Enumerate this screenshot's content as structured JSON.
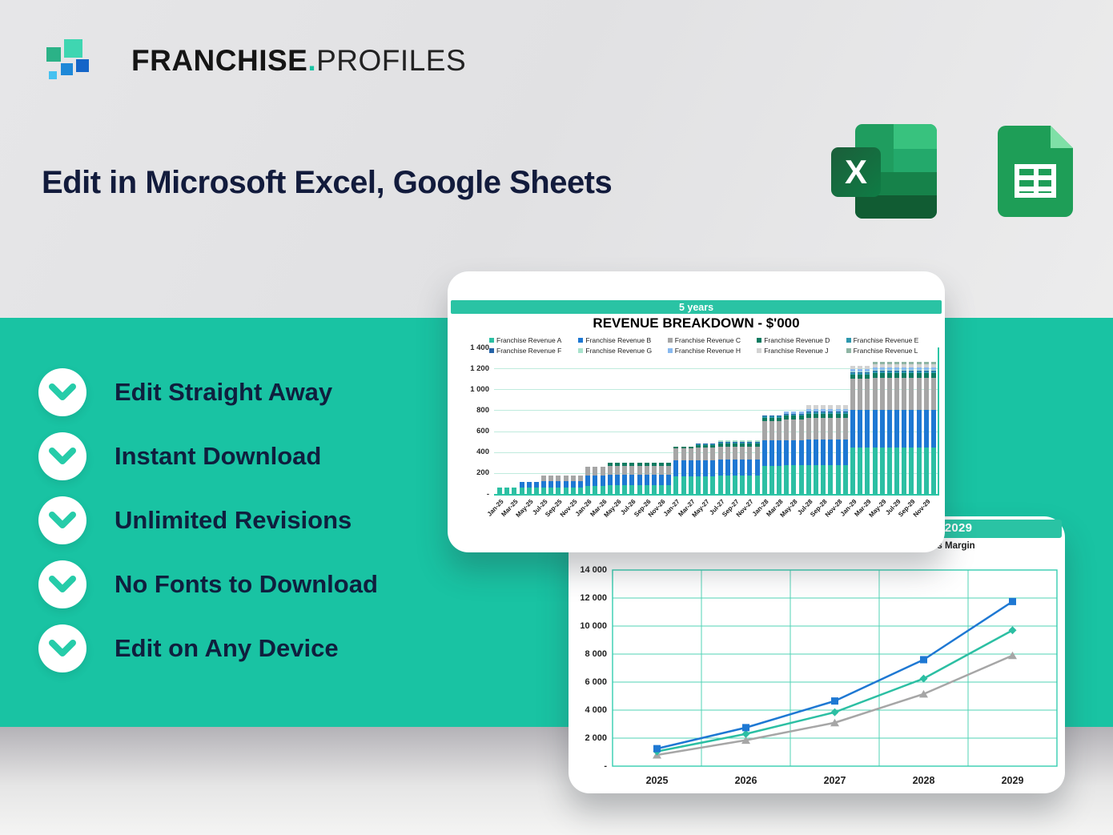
{
  "logo": {
    "word1": "FRANCHISE",
    "dot": ".",
    "word2": "PROFILES"
  },
  "headline": "Edit in Microsoft Excel, Google Sheets",
  "icons": {
    "logo_icon": "squares-cluster-logo-icon",
    "excel": "microsoft-excel-icon",
    "sheets": "google-sheets-icon",
    "feature_bullet": "chevron-down-icon"
  },
  "features": [
    {
      "label": "Edit Straight Away"
    },
    {
      "label": "Instant Download"
    },
    {
      "label": "Unlimited Revisions"
    },
    {
      "label": "No Fonts to Download"
    },
    {
      "label": "Edit on Any Device"
    }
  ],
  "colors": {
    "teal_band": "#19C3A3",
    "navy_text": "#0F1F3E",
    "card_header_teal": "#2AC3A4",
    "grid_teal_light": "#BFEBDD",
    "grid_teal": "#52D3B6",
    "axis_teal": "#2CC5A5"
  },
  "chart_data": [
    {
      "type": "bar",
      "stacked": true,
      "period_label": "5 years",
      "title": "REVENUE BREAKDOWN - $'000",
      "n_points": 60,
      "ylim": [
        0,
        1400
      ],
      "y_tick_values": [
        1400,
        1200,
        1000,
        800,
        600,
        400,
        200,
        0
      ],
      "y_tick_labels": [
        "1 400",
        "1 200",
        "1 000",
        "800",
        "600",
        "400",
        "200",
        "-"
      ],
      "x_tick_labels": [
        "Jan-25",
        "Mar-25",
        "May-25",
        "Jul-25",
        "Sep-25",
        "Nov-25",
        "Jan-26",
        "Mar-26",
        "May-26",
        "Jul-26",
        "Sep-26",
        "Nov-26",
        "Jan-27",
        "Mar-27",
        "May-27",
        "Jul-27",
        "Sep-27",
        "Nov-27",
        "Jan-28",
        "Mar-28",
        "May-28",
        "Jul-28",
        "Sep-28",
        "Nov-28",
        "Jan-29",
        "Mar-29",
        "May-29",
        "Jul-29",
        "Sep-29",
        "Nov-29"
      ],
      "legend_position": "top",
      "series": [
        {
          "name": "Franchise Revenue A",
          "color": "#2CBFA3",
          "values": [
            60,
            60,
            60,
            62,
            62,
            62,
            64,
            64,
            64,
            64,
            64,
            64,
            80,
            80,
            80,
            82,
            82,
            82,
            82,
            82,
            82,
            82,
            82,
            82,
            170,
            170,
            170,
            172,
            172,
            172,
            175,
            175,
            175,
            175,
            175,
            175,
            270,
            270,
            270,
            272,
            272,
            272,
            275,
            275,
            275,
            275,
            275,
            275,
            440,
            440,
            440,
            445,
            445,
            445,
            445,
            445,
            445,
            445,
            445,
            445
          ]
        },
        {
          "name": "Franchise Revenue B",
          "color": "#1E78D3",
          "values": [
            0,
            0,
            0,
            55,
            55,
            55,
            56,
            56,
            56,
            56,
            56,
            56,
            95,
            95,
            95,
            98,
            98,
            98,
            98,
            98,
            98,
            98,
            98,
            98,
            150,
            150,
            150,
            153,
            153,
            153,
            155,
            155,
            155,
            155,
            155,
            155,
            240,
            240,
            240,
            242,
            242,
            242,
            245,
            245,
            245,
            245,
            245,
            245,
            360,
            360,
            360,
            362,
            362,
            362,
            362,
            362,
            362,
            362,
            362,
            362
          ]
        },
        {
          "name": "Franchise Revenue C",
          "color": "#A6A6A6",
          "values": [
            0,
            0,
            0,
            0,
            0,
            0,
            55,
            55,
            55,
            55,
            55,
            55,
            85,
            85,
            85,
            90,
            90,
            90,
            90,
            90,
            90,
            90,
            90,
            90,
            115,
            115,
            115,
            120,
            120,
            120,
            125,
            125,
            125,
            125,
            125,
            125,
            185,
            185,
            185,
            195,
            195,
            195,
            205,
            205,
            205,
            205,
            205,
            205,
            300,
            300,
            300,
            305,
            305,
            305,
            305,
            305,
            305,
            305,
            305,
            305
          ]
        },
        {
          "name": "Franchise Revenue D",
          "color": "#0E7B60",
          "values": [
            0,
            0,
            0,
            0,
            0,
            0,
            0,
            0,
            0,
            0,
            0,
            0,
            0,
            0,
            0,
            30,
            30,
            30,
            30,
            30,
            30,
            30,
            30,
            30,
            20,
            20,
            20,
            22,
            22,
            22,
            25,
            25,
            25,
            25,
            25,
            25,
            35,
            35,
            35,
            38,
            38,
            38,
            40,
            40,
            40,
            40,
            40,
            40,
            40,
            40,
            40,
            42,
            42,
            42,
            42,
            42,
            42,
            42,
            42,
            42
          ]
        },
        {
          "name": "Franchise Revenue E",
          "color": "#2E98AE",
          "values": [
            0,
            0,
            0,
            0,
            0,
            0,
            0,
            0,
            0,
            0,
            0,
            0,
            0,
            0,
            0,
            0,
            0,
            0,
            0,
            0,
            0,
            0,
            0,
            0,
            0,
            0,
            0,
            11,
            11,
            11,
            12,
            12,
            12,
            12,
            12,
            12,
            10,
            10,
            10,
            12,
            12,
            12,
            14,
            14,
            14,
            14,
            14,
            14,
            15,
            15,
            15,
            16,
            16,
            16,
            16,
            16,
            16,
            16,
            16,
            16
          ]
        },
        {
          "name": "Franchise Revenue F",
          "color": "#2563A8",
          "values": [
            0,
            0,
            0,
            0,
            0,
            0,
            0,
            0,
            0,
            0,
            0,
            0,
            0,
            0,
            0,
            0,
            0,
            0,
            0,
            0,
            0,
            0,
            0,
            0,
            0,
            0,
            0,
            5,
            5,
            5,
            5,
            5,
            5,
            5,
            5,
            5,
            6,
            6,
            6,
            6,
            6,
            6,
            6,
            6,
            6,
            6,
            6,
            6,
            8,
            8,
            8,
            8,
            8,
            8,
            8,
            8,
            8,
            8,
            8,
            8
          ]
        },
        {
          "name": "Franchise Revenue G",
          "color": "#A8E3CC",
          "values": [
            0,
            0,
            0,
            0,
            0,
            0,
            0,
            0,
            0,
            0,
            0,
            0,
            0,
            0,
            0,
            0,
            0,
            0,
            0,
            0,
            0,
            0,
            0,
            0,
            0,
            0,
            0,
            0,
            0,
            0,
            18,
            18,
            18,
            18,
            18,
            18,
            0,
            0,
            0,
            0,
            0,
            0,
            0,
            0,
            0,
            0,
            0,
            0,
            10,
            10,
            10,
            10,
            10,
            10,
            10,
            10,
            10,
            10,
            10,
            10
          ]
        },
        {
          "name": "Franchise Revenue H",
          "color": "#88B9EF",
          "values": [
            0,
            0,
            0,
            0,
            0,
            0,
            0,
            0,
            0,
            0,
            0,
            0,
            0,
            0,
            0,
            0,
            0,
            0,
            0,
            0,
            0,
            0,
            0,
            0,
            0,
            0,
            0,
            0,
            0,
            0,
            0,
            0,
            0,
            0,
            0,
            0,
            0,
            0,
            0,
            26,
            26,
            26,
            28,
            28,
            28,
            28,
            28,
            28,
            22,
            22,
            22,
            22,
            22,
            22,
            22,
            22,
            22,
            22,
            22,
            22
          ]
        },
        {
          "name": "Franchise Revenue J",
          "color": "#D2D2D2",
          "values": [
            0,
            0,
            0,
            0,
            0,
            0,
            0,
            0,
            0,
            0,
            0,
            0,
            0,
            0,
            0,
            0,
            0,
            0,
            0,
            0,
            0,
            0,
            0,
            0,
            0,
            0,
            0,
            0,
            0,
            0,
            0,
            0,
            0,
            0,
            0,
            0,
            0,
            0,
            0,
            0,
            0,
            0,
            33,
            33,
            33,
            33,
            33,
            33,
            26,
            26,
            26,
            26,
            26,
            26,
            26,
            26,
            26,
            26,
            26,
            26
          ]
        },
        {
          "name": "Franchise Revenue L",
          "color": "#8FB5A4",
          "values": [
            0,
            0,
            0,
            0,
            0,
            0,
            0,
            0,
            0,
            0,
            0,
            0,
            0,
            0,
            0,
            0,
            0,
            0,
            0,
            0,
            0,
            0,
            0,
            0,
            0,
            0,
            0,
            0,
            0,
            0,
            0,
            0,
            0,
            0,
            0,
            0,
            0,
            0,
            0,
            0,
            0,
            0,
            0,
            0,
            0,
            0,
            0,
            0,
            0,
            0,
            0,
            26,
            26,
            26,
            26,
            26,
            26,
            26,
            26,
            26
          ]
        }
      ]
    },
    {
      "type": "line",
      "header_visible_fragment": "ber 2029",
      "legend_visible_fragment": "oss Margin",
      "categories": [
        "2025",
        "2026",
        "2027",
        "2028",
        "2029"
      ],
      "ylim": [
        0,
        14000
      ],
      "y_tick_values": [
        14000,
        12000,
        10000,
        8000,
        6000,
        4000,
        2000,
        0
      ],
      "y_tick_labels": [
        "14 000",
        "12 000",
        "10 000",
        "8 000",
        "6 000",
        "4 000",
        "2 000",
        "-"
      ],
      "grid": true,
      "series": [
        {
          "name": "blue-series (square markers)",
          "color": "#1E78D3",
          "marker": "square",
          "values": [
            1250,
            2750,
            4650,
            7600,
            11750
          ]
        },
        {
          "name": "teal-series (diamond markers)",
          "color": "#2CBFA3",
          "marker": "diamond",
          "values": [
            1050,
            2300,
            3850,
            6250,
            9700
          ]
        },
        {
          "name": "gray-series (triangle markers)",
          "color": "#A6A6A6",
          "marker": "triangle",
          "values": [
            800,
            1850,
            3100,
            5150,
            7900
          ]
        }
      ]
    }
  ]
}
